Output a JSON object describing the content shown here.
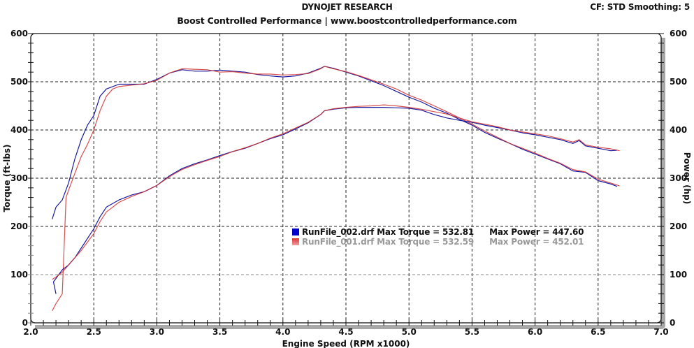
{
  "header": {
    "title": "DYNOJET RESEARCH",
    "subtitle": "Boost Controlled Performance | www.boostcontrolledperformance.com",
    "correction_info": "CF: STD  Smoothing: 5"
  },
  "legend": [
    {
      "file": "RunFile_002.drf",
      "label": "RunFile_002.drf Max Torque = 532.81",
      "power_label": "Max Power = 447.60",
      "color": "#0000cc"
    },
    {
      "file": "RunFile_001.drf",
      "label": "RunFile_001.drf Max Torque = 532.59",
      "power_label": "Max Power = 452.01",
      "color": "#dd3333"
    }
  ],
  "chart_data": {
    "type": "line",
    "title": "DYNOJET RESEARCH",
    "subtitle": "Boost Controlled Performance | www.boostcontrolledperformance.com",
    "xlabel": "Engine Speed (RPM x1000)",
    "ylabel": "Torque (ft-lbs)",
    "y2label": "Power (hp)",
    "xlim": [
      2.0,
      7.0
    ],
    "ylim": [
      0,
      600
    ],
    "y2lim": [
      0,
      600
    ],
    "x_ticks": [
      "2.0",
      "2.5",
      "3.0",
      "3.5",
      "4.0",
      "4.5",
      "5.0",
      "5.5",
      "6.0",
      "6.5",
      "7.0"
    ],
    "y_ticks": [
      "0",
      "100",
      "200",
      "300",
      "400",
      "500",
      "600"
    ],
    "y2_ticks": [
      "0",
      "100",
      "200",
      "300",
      "400",
      "500",
      "600"
    ],
    "grid": true,
    "legend_position": "center",
    "series": [
      {
        "name": "RunFile_002.drf Torque",
        "color": "#1a1aa0",
        "x": [
          2.17,
          2.2,
          2.25,
          2.3,
          2.35,
          2.4,
          2.45,
          2.5,
          2.55,
          2.6,
          2.65,
          2.7,
          2.8,
          2.9,
          3.0,
          3.1,
          3.2,
          3.3,
          3.4,
          3.5,
          3.6,
          3.7,
          3.8,
          3.9,
          4.0,
          4.1,
          4.2,
          4.3,
          4.33,
          4.4,
          4.5,
          4.6,
          4.7,
          4.8,
          4.9,
          5.0,
          5.1,
          5.2,
          5.3,
          5.4,
          5.5,
          5.6,
          5.7,
          5.8,
          5.9,
          6.0,
          6.1,
          6.2,
          6.3,
          6.4,
          6.5,
          6.6,
          6.65
        ],
        "values": [
          215,
          240,
          255,
          290,
          340,
          380,
          410,
          430,
          470,
          485,
          490,
          495,
          495,
          495,
          505,
          518,
          525,
          522,
          522,
          524,
          522,
          520,
          515,
          512,
          510,
          512,
          518,
          528,
          532,
          528,
          520,
          512,
          502,
          492,
          480,
          468,
          458,
          445,
          435,
          422,
          410,
          395,
          383,
          372,
          360,
          350,
          340,
          330,
          315,
          312,
          295,
          288,
          283
        ]
      },
      {
        "name": "RunFile_001.drf Torque",
        "color": "#d03030",
        "x": [
          2.17,
          2.2,
          2.25,
          2.28,
          2.3,
          2.35,
          2.4,
          2.45,
          2.5,
          2.55,
          2.6,
          2.65,
          2.7,
          2.8,
          2.9,
          3.0,
          3.1,
          3.2,
          3.3,
          3.4,
          3.5,
          3.6,
          3.7,
          3.8,
          3.9,
          4.0,
          4.1,
          4.2,
          4.3,
          4.33,
          4.4,
          4.5,
          4.6,
          4.7,
          4.8,
          4.9,
          5.0,
          5.1,
          5.2,
          5.3,
          5.4,
          5.5,
          5.6,
          5.7,
          5.8,
          5.9,
          6.0,
          6.1,
          6.2,
          6.3,
          6.4,
          6.5,
          6.6,
          6.67
        ],
        "values": [
          25,
          40,
          60,
          260,
          275,
          310,
          345,
          370,
          400,
          440,
          470,
          485,
          490,
          493,
          496,
          503,
          518,
          527,
          526,
          525,
          520,
          521,
          518,
          516,
          516,
          514,
          515,
          517,
          527,
          532,
          527,
          521,
          513,
          504,
          495,
          485,
          472,
          462,
          450,
          438,
          425,
          412,
          398,
          385,
          372,
          362,
          352,
          341,
          331,
          318,
          313,
          298,
          290,
          284
        ]
      },
      {
        "name": "RunFile_002.drf Power",
        "color": "#1a1aa0",
        "x": [
          2.2,
          2.18,
          2.25,
          2.3,
          2.35,
          2.4,
          2.5,
          2.55,
          2.6,
          2.7,
          2.8,
          2.9,
          3.0,
          3.1,
          3.2,
          3.3,
          3.4,
          3.5,
          3.6,
          3.7,
          3.8,
          3.9,
          4.0,
          4.1,
          4.2,
          4.3,
          4.33,
          4.4,
          4.5,
          4.6,
          4.7,
          4.8,
          4.9,
          5.0,
          5.1,
          5.2,
          5.3,
          5.4,
          5.5,
          5.6,
          5.7,
          5.8,
          5.9,
          6.0,
          6.1,
          6.2,
          6.3,
          6.35,
          6.4,
          6.5,
          6.6,
          6.65
        ],
        "values": [
          60,
          85,
          110,
          120,
          135,
          155,
          195,
          220,
          240,
          255,
          265,
          272,
          285,
          305,
          320,
          330,
          338,
          347,
          355,
          362,
          372,
          382,
          390,
          402,
          415,
          432,
          440,
          443,
          446,
          447,
          447,
          447,
          446,
          445,
          441,
          432,
          425,
          420,
          416,
          410,
          405,
          400,
          394,
          390,
          385,
          380,
          372,
          378,
          367,
          362,
          357,
          358
        ]
      },
      {
        "name": "RunFile_001.drf Power",
        "color": "#d03030",
        "x": [
          2.17,
          2.2,
          2.25,
          2.3,
          2.35,
          2.4,
          2.5,
          2.55,
          2.6,
          2.7,
          2.8,
          2.9,
          3.0,
          3.1,
          3.2,
          3.3,
          3.4,
          3.5,
          3.6,
          3.7,
          3.8,
          3.9,
          4.0,
          4.1,
          4.2,
          4.3,
          4.33,
          4.4,
          4.5,
          4.6,
          4.7,
          4.8,
          4.9,
          5.0,
          5.1,
          5.2,
          5.3,
          5.4,
          5.5,
          5.6,
          5.7,
          5.8,
          5.9,
          6.0,
          6.1,
          6.2,
          6.3,
          6.35,
          6.4,
          6.5,
          6.6,
          6.67
        ],
        "values": [
          90,
          95,
          105,
          120,
          135,
          150,
          185,
          210,
          230,
          250,
          262,
          272,
          285,
          303,
          318,
          328,
          337,
          345,
          355,
          363,
          372,
          383,
          392,
          404,
          416,
          432,
          440,
          444,
          447,
          449,
          450,
          452,
          450,
          447,
          443,
          438,
          433,
          425,
          417,
          412,
          407,
          400,
          396,
          392,
          388,
          382,
          375,
          380,
          369,
          364,
          361,
          357
        ]
      }
    ]
  }
}
